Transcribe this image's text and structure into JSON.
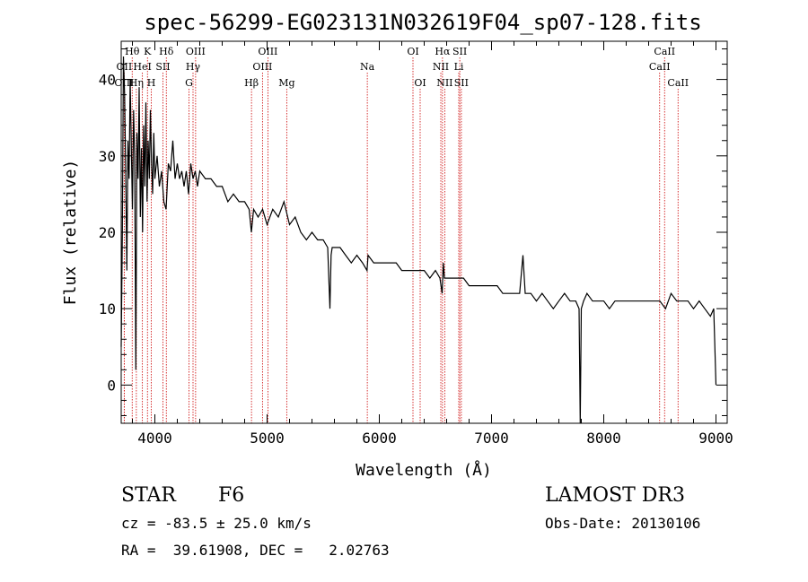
{
  "chart_data": {
    "type": "line",
    "title": "spec-56299-EG023131N032619F04_sp07-128.fits",
    "xlabel": "Wavelength (Å)",
    "ylabel": "Flux (relative)",
    "xlim": [
      3700,
      9100
    ],
    "ylim": [
      -5,
      45
    ],
    "xticks": [
      4000,
      5000,
      6000,
      7000,
      8000,
      9000
    ],
    "yticks": [
      0,
      10,
      20,
      30,
      40
    ],
    "grid": false,
    "line_color": "#000000",
    "marker_color": "#cc0000",
    "series": [
      {
        "x": [
          3700,
          3710,
          3720,
          3730,
          3740,
          3750,
          3760,
          3770,
          3780,
          3790,
          3800,
          3810,
          3820,
          3830,
          3840,
          3850,
          3860,
          3870,
          3880,
          3890,
          3900,
          3910,
          3920,
          3930,
          3940,
          3950,
          3960,
          3970,
          3980,
          3990,
          4000,
          4020,
          4040,
          4060,
          4080,
          4100,
          4120,
          4140,
          4160,
          4180,
          4200,
          4220,
          4240,
          4260,
          4280,
          4300,
          4320,
          4340,
          4360,
          4380,
          4400,
          4450,
          4500,
          4550,
          4600,
          4650,
          4700,
          4750,
          4800,
          4840,
          4860,
          4880,
          4920,
          4960,
          5000,
          5050,
          5100,
          5150,
          5200,
          5250,
          5300,
          5350,
          5400,
          5450,
          5500,
          5540,
          5560,
          5570,
          5580,
          5600,
          5650,
          5700,
          5750,
          5800,
          5850,
          5890,
          5900,
          5950,
          6000,
          6050,
          6100,
          6150,
          6200,
          6250,
          6300,
          6350,
          6400,
          6450,
          6500,
          6540,
          6560,
          6570,
          6580,
          6600,
          6650,
          6700,
          6750,
          6800,
          6850,
          6900,
          6950,
          7000,
          7050,
          7100,
          7150,
          7200,
          7250,
          7280,
          7300,
          7320,
          7350,
          7400,
          7450,
          7500,
          7550,
          7600,
          7650,
          7700,
          7750,
          7780,
          7790,
          7800,
          7820,
          7850,
          7900,
          7950,
          8000,
          8050,
          8100,
          8150,
          8200,
          8250,
          8300,
          8350,
          8400,
          8450,
          8500,
          8550,
          8600,
          8650,
          8700,
          8750,
          8800,
          8850,
          8900,
          8950,
          8980,
          9000
        ],
        "y": [
          5,
          20,
          43,
          38,
          28,
          15,
          32,
          27,
          40,
          31,
          23,
          36,
          30,
          2,
          33,
          27,
          39,
          22,
          31,
          20,
          34,
          26,
          37,
          24,
          32,
          27,
          36,
          29,
          25,
          33,
          27,
          30,
          26,
          28,
          24,
          23,
          29,
          28,
          32,
          27,
          29,
          27,
          28,
          26,
          28,
          25,
          29,
          27,
          28,
          26,
          28,
          27,
          27,
          26,
          26,
          24,
          25,
          24,
          24,
          23,
          20,
          23,
          22,
          23,
          21,
          23,
          22,
          24,
          21,
          22,
          20,
          19,
          20,
          19,
          19,
          18,
          10,
          17,
          18,
          18,
          18,
          17,
          16,
          17,
          16,
          15,
          17,
          16,
          16,
          16,
          16,
          16,
          15,
          15,
          15,
          15,
          15,
          14,
          15,
          14,
          12,
          16,
          14,
          14,
          14,
          14,
          14,
          13,
          13,
          13,
          13,
          13,
          13,
          12,
          12,
          12,
          12,
          17,
          12,
          12,
          12,
          11,
          12,
          11,
          10,
          11,
          12,
          11,
          11,
          10,
          -5,
          10,
          11,
          12,
          11,
          11,
          11,
          10,
          11,
          11,
          11,
          11,
          11,
          11,
          11,
          11,
          11,
          10,
          12,
          11,
          11,
          11,
          10,
          11,
          10,
          9,
          10,
          0
        ]
      }
    ],
    "line_markers": [
      {
        "name": "Hθ",
        "wavelength": 3798,
        "row": 1
      },
      {
        "name": "K",
        "wavelength": 3934,
        "row": 1
      },
      {
        "name": "Hδ",
        "wavelength": 4102,
        "row": 1
      },
      {
        "name": "OIII",
        "wavelength": 4363,
        "row": 1
      },
      {
        "name": "OIII",
        "wavelength": 5007,
        "row": 1
      },
      {
        "name": "OI",
        "wavelength": 6300,
        "row": 1
      },
      {
        "name": "Hα",
        "wavelength": 6563,
        "row": 1
      },
      {
        "name": "SII",
        "wavelength": 6717,
        "row": 1
      },
      {
        "name": "CaII",
        "wavelength": 8542,
        "row": 1
      },
      {
        "name": "OII",
        "wavelength": 3727,
        "row": 2
      },
      {
        "name": "HeI",
        "wavelength": 3889,
        "row": 2
      },
      {
        "name": "SII",
        "wavelength": 4072,
        "row": 2
      },
      {
        "name": "Hγ",
        "wavelength": 4340,
        "row": 2
      },
      {
        "name": "OIII",
        "wavelength": 4959,
        "row": 2
      },
      {
        "name": "Na",
        "wavelength": 5893,
        "row": 2
      },
      {
        "name": "NII",
        "wavelength": 6548,
        "row": 2
      },
      {
        "name": "Li",
        "wavelength": 6708,
        "row": 2
      },
      {
        "name": "CaII",
        "wavelength": 8498,
        "row": 2
      },
      {
        "name": "OIII",
        "wavelength": 3727,
        "row": 3
      },
      {
        "name": "Hη",
        "wavelength": 3835,
        "row": 3
      },
      {
        "name": "H",
        "wavelength": 3968,
        "row": 3
      },
      {
        "name": "G",
        "wavelength": 4304,
        "row": 3
      },
      {
        "name": "Hβ",
        "wavelength": 4861,
        "row": 3
      },
      {
        "name": "Mg",
        "wavelength": 5175,
        "row": 3
      },
      {
        "name": "OI",
        "wavelength": 6364,
        "row": 3
      },
      {
        "name": "NII",
        "wavelength": 6583,
        "row": 3
      },
      {
        "name": "SII",
        "wavelength": 6731,
        "row": 3
      },
      {
        "name": "CaII",
        "wavelength": 8662,
        "row": 3
      }
    ]
  },
  "info": {
    "object_class": "STAR",
    "subclass": "F6",
    "survey": "LAMOST DR3",
    "redshift_line": "cz = -83.5 ± 25.0 km/s",
    "obs_date_line": "Obs-Date: 20130106",
    "coords_line": "RA =  39.61908, DEC =   2.02763"
  }
}
